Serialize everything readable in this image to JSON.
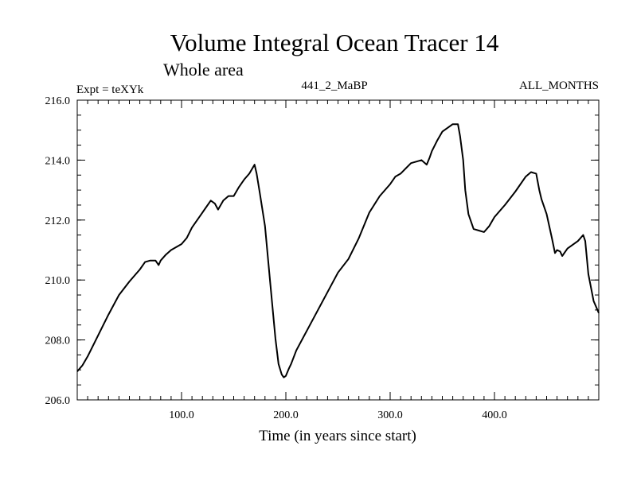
{
  "chart_data": {
    "type": "line",
    "title": "Volume Integral Ocean Tracer 14",
    "subtitle": "Whole area",
    "header_left": "Expt = teXYk",
    "header_center": "441_2_MaBP",
    "header_right": "ALL_MONTHS",
    "xlabel": "Time (in years since start)",
    "ylabel": "",
    "xlim": [
      0,
      500
    ],
    "ylim": [
      206,
      216
    ],
    "x_ticks": [
      100,
      200,
      300,
      400
    ],
    "x_tick_labels": [
      "100.0",
      "200.0",
      "300.0",
      "400.0"
    ],
    "y_ticks": [
      206,
      208,
      210,
      212,
      214,
      216
    ],
    "y_tick_labels": [
      "206.0",
      "208.0",
      "210.0",
      "212.0",
      "214.0",
      "216.0"
    ],
    "x_minor_step": 10,
    "y_minor_step": 0.5,
    "grid": false,
    "series": [
      {
        "x": [
          0,
          5,
          10,
          20,
          30,
          40,
          50,
          60,
          65,
          70,
          75,
          78,
          80,
          85,
          90,
          100,
          105,
          110,
          120,
          128,
          132,
          135,
          140,
          145,
          150,
          155,
          160,
          165,
          170,
          172,
          175,
          180,
          185,
          190,
          193,
          196,
          198,
          200,
          203,
          205,
          210,
          220,
          230,
          240,
          250,
          260,
          270,
          280,
          290,
          300,
          305,
          310,
          320,
          330,
          335,
          338,
          340,
          345,
          350,
          360,
          365,
          367,
          370,
          372,
          375,
          380,
          385,
          390,
          395,
          400,
          410,
          420,
          430,
          435,
          440,
          443,
          445,
          450,
          455,
          458,
          460,
          463,
          465,
          470,
          480,
          485,
          487,
          490,
          495,
          500
        ],
        "y": [
          206.95,
          207.15,
          207.45,
          208.15,
          208.85,
          209.5,
          209.95,
          210.35,
          210.6,
          210.65,
          210.65,
          210.5,
          210.65,
          210.85,
          211.0,
          211.2,
          211.4,
          211.75,
          212.25,
          212.65,
          212.55,
          212.35,
          212.65,
          212.8,
          212.8,
          213.1,
          213.35,
          213.55,
          213.85,
          213.55,
          212.9,
          211.8,
          209.9,
          208.05,
          207.2,
          206.85,
          206.75,
          206.8,
          207.05,
          207.2,
          207.65,
          208.3,
          208.95,
          209.6,
          210.25,
          210.7,
          211.4,
          212.25,
          212.8,
          213.2,
          213.45,
          213.55,
          213.9,
          214.0,
          213.85,
          214.1,
          214.3,
          214.65,
          214.95,
          215.2,
          215.2,
          214.8,
          214.0,
          213.0,
          212.2,
          211.7,
          211.65,
          211.6,
          211.8,
          212.1,
          212.5,
          212.95,
          213.45,
          213.6,
          213.55,
          213.0,
          212.7,
          212.2,
          211.4,
          210.9,
          211.0,
          210.95,
          210.8,
          211.05,
          211.3,
          211.5,
          211.3,
          210.2,
          209.3,
          208.9
        ]
      }
    ]
  }
}
